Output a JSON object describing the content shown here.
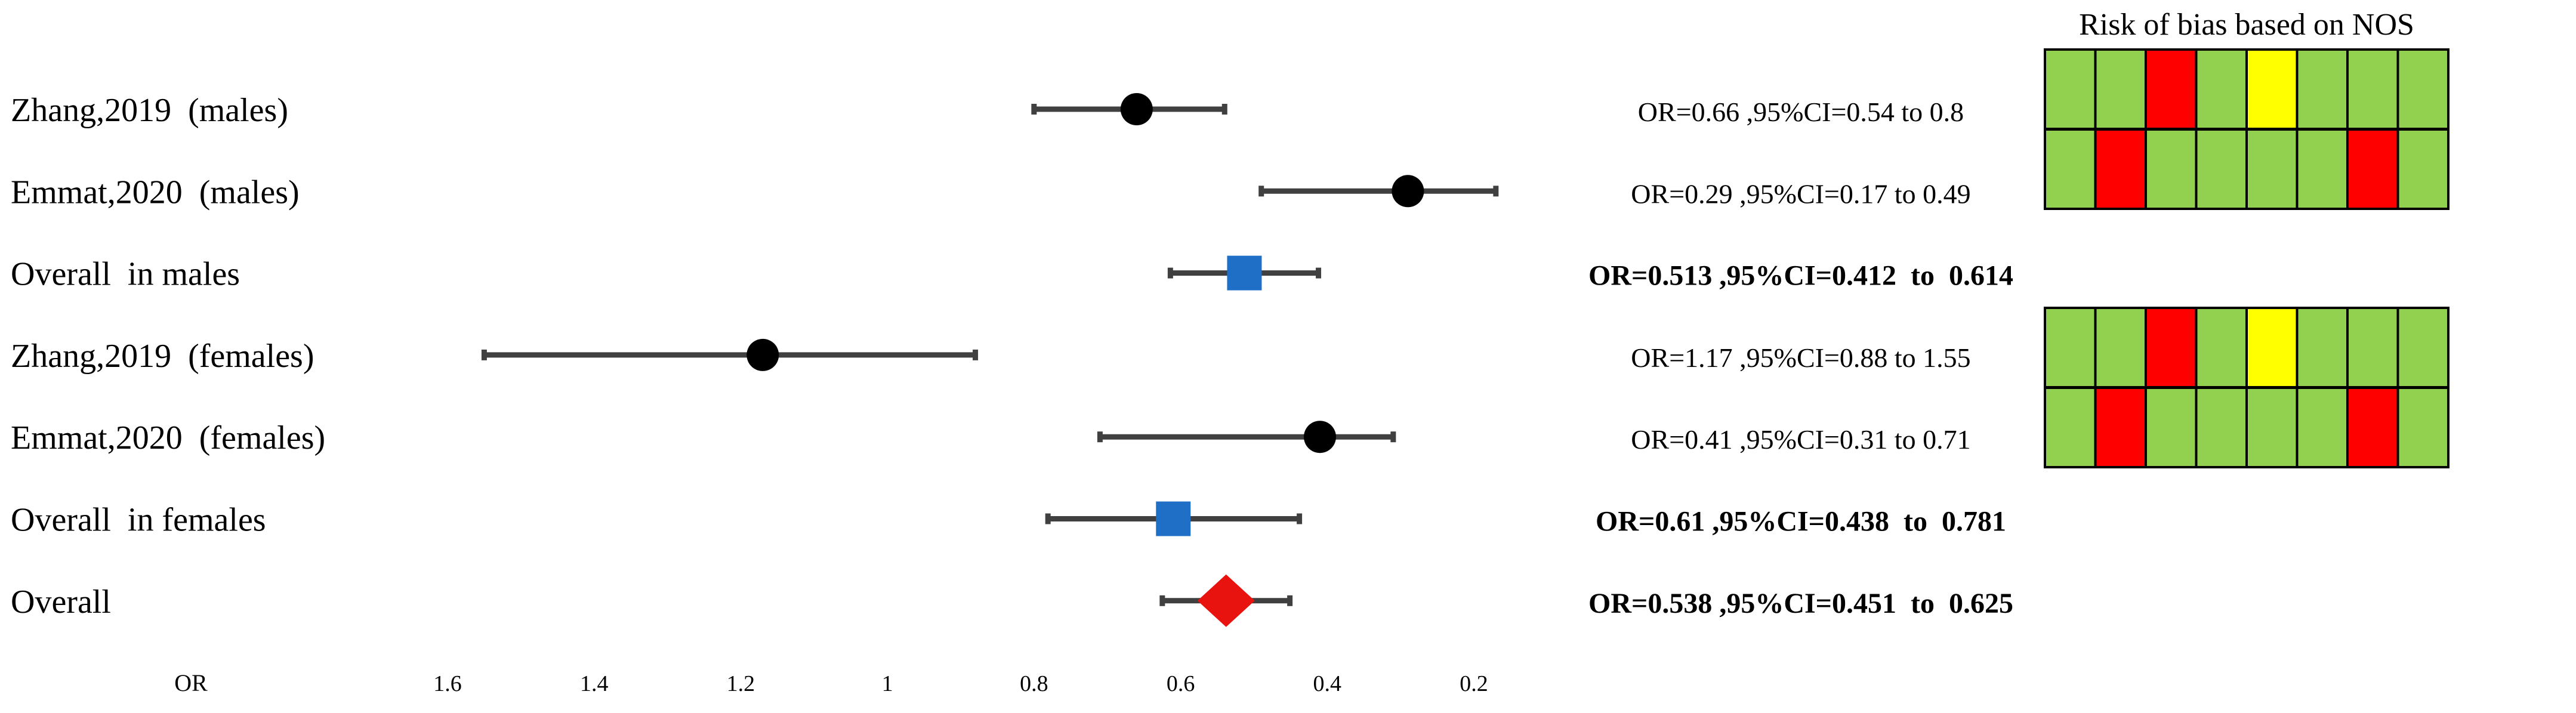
{
  "chart_data": {
    "type": "forest",
    "xlabel": "OR",
    "x_reversed": true,
    "xlim": [
      1.7,
      0.1
    ],
    "xticks": [
      "1.6",
      "1.4",
      "1.2",
      "1",
      "0.8",
      "0.6",
      "0.4",
      "0.2"
    ],
    "rows": [
      {
        "label": "Zhang,2019  (males)",
        "or": 0.66,
        "lo": 0.54,
        "hi": 0.8,
        "marker": "circle",
        "color": "#000000",
        "text": "OR=0.66 ,95%CI=0.54 to 0.8",
        "bold": false,
        "rob": [
          "g",
          "g",
          "r",
          "g",
          "y",
          "g",
          "g",
          "g"
        ]
      },
      {
        "label": "Emmat,2020  (males)",
        "or": 0.29,
        "lo": 0.17,
        "hi": 0.49,
        "marker": "circle",
        "color": "#000000",
        "text": "OR=0.29 ,95%CI=0.17 to 0.49",
        "bold": false,
        "rob": [
          "g",
          "r",
          "g",
          "g",
          "g",
          "g",
          "r",
          "g"
        ]
      },
      {
        "label": "Overall  in males",
        "or": 0.513,
        "lo": 0.412,
        "hi": 0.614,
        "marker": "square",
        "color": "#1f6fc6",
        "text": "OR=0.513 ,95%CI=0.412  to  0.614",
        "bold": true,
        "rob": null
      },
      {
        "label": "Zhang,2019  (females)",
        "or": 1.17,
        "lo": 0.88,
        "hi": 1.55,
        "marker": "circle",
        "color": "#000000",
        "text": "OR=1.17 ,95%CI=0.88 to 1.55",
        "bold": false,
        "rob": [
          "g",
          "g",
          "r",
          "g",
          "y",
          "g",
          "g",
          "g"
        ]
      },
      {
        "label": "Emmat,2020  (females)",
        "or": 0.41,
        "lo": 0.31,
        "hi": 0.71,
        "marker": "circle",
        "color": "#000000",
        "text": "OR=0.41 ,95%CI=0.31 to 0.71",
        "bold": false,
        "rob": [
          "g",
          "r",
          "g",
          "g",
          "g",
          "g",
          "r",
          "g"
        ]
      },
      {
        "label": "Overall  in females",
        "or": 0.61,
        "lo": 0.438,
        "hi": 0.781,
        "marker": "square",
        "color": "#1f6fc6",
        "text": "OR=0.61 ,95%CI=0.438  to  0.781",
        "bold": true,
        "rob": null
      },
      {
        "label": "Overall",
        "or": 0.538,
        "lo": 0.451,
        "hi": 0.625,
        "marker": "diamond",
        "color": "#e8130f",
        "text": "OR=0.538 ,95%CI=0.451  to  0.625",
        "bold": true,
        "rob": null
      }
    ],
    "rob_title": "Risk of bias based on NOS",
    "rob_colors": {
      "g": "#92d050",
      "r": "#ff0000",
      "y": "#ffff00"
    }
  }
}
